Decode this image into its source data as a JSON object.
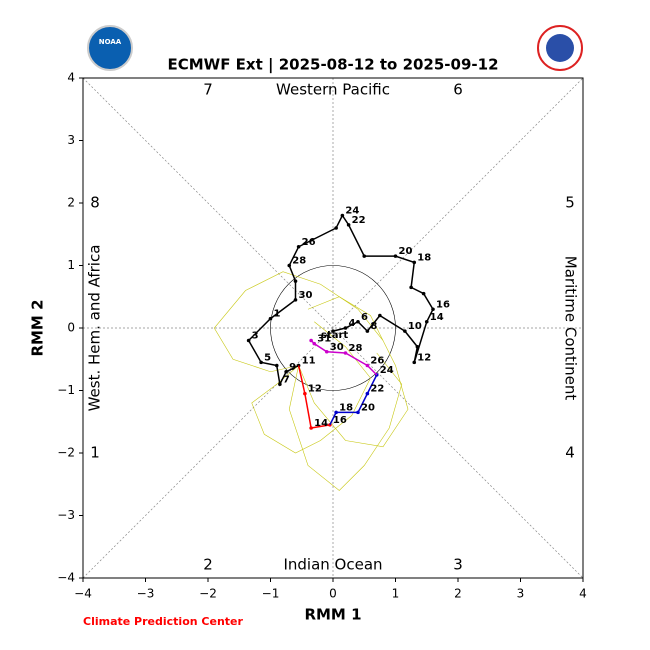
{
  "chart_data": {
    "type": "phase",
    "title": "ECMWF Ext | 2025-08-12 to 2025-09-12",
    "xlabel": "RMM 1",
    "ylabel": "RMM 2",
    "xlim": [
      -4,
      4
    ],
    "ylim": [
      -4,
      4
    ],
    "xticks": [
      {
        "value": -4,
        "label": "−4"
      },
      {
        "value": -3,
        "label": "−3"
      },
      {
        "value": -2,
        "label": "−2"
      },
      {
        "value": -1,
        "label": "−1"
      },
      0,
      1,
      2,
      3,
      4
    ],
    "yticks": [
      {
        "value": -4,
        "label": "−4"
      },
      {
        "value": -3,
        "label": "−3"
      },
      {
        "value": -2,
        "label": "−2"
      },
      {
        "value": -1,
        "label": "−1"
      },
      0,
      1,
      2,
      3,
      4
    ],
    "regions": {
      "top": "Western Pacific",
      "bottom": "Indian Ocean",
      "left": "West. Hem. and Africa",
      "right": "Maritime Continent"
    },
    "phases": [
      1,
      2,
      3,
      4,
      5,
      6,
      7,
      8
    ],
    "start_label": "start",
    "footer": "Climate Prediction Center",
    "logo_text": "NOAA",
    "ensemble_color": "#c8c814",
    "ensemble": [
      {
        "x": [
          -0.55,
          -0.9,
          -1.3,
          -1.1,
          -0.6,
          -0.2,
          0.3,
          0.6,
          0.2,
          -0.3
        ],
        "y": [
          -0.6,
          -0.9,
          -1.2,
          -1.7,
          -2.0,
          -1.8,
          -1.4,
          -0.8,
          -0.3,
          0.1
        ]
      },
      {
        "x": [
          -0.55,
          -0.3,
          0.2,
          0.8,
          1.2,
          1.0,
          0.6,
          0.1,
          -0.4
        ],
        "y": [
          -0.6,
          -1.2,
          -1.8,
          -1.9,
          -1.3,
          -0.6,
          0.2,
          0.5,
          0.3
        ]
      },
      {
        "x": [
          -0.55,
          -0.7,
          -0.4,
          0.1,
          0.5,
          0.9,
          1.1,
          0.7
        ],
        "y": [
          -0.6,
          -1.3,
          -2.2,
          -2.6,
          -2.2,
          -1.6,
          -0.9,
          -0.4
        ]
      },
      {
        "x": [
          -0.55,
          -1.0,
          -1.6,
          -1.9,
          -1.4,
          -0.8,
          -0.2,
          0.4,
          0.8
        ],
        "y": [
          -0.6,
          -0.7,
          -0.5,
          0.0,
          0.6,
          0.9,
          0.7,
          0.3,
          -0.2
        ]
      }
    ],
    "observed": {
      "color": "#000000",
      "x": [
        0.0,
        0.2,
        0.4,
        0.55,
        0.75,
        1.15,
        1.35,
        1.3,
        1.5,
        1.6,
        1.45,
        1.25,
        1.3,
        1.0,
        0.5,
        0.25,
        0.15,
        0.05,
        -0.55,
        -0.7,
        -0.6,
        -0.6,
        -1.0,
        -1.35,
        -1.15,
        -0.9,
        -0.85,
        -0.75,
        -0.55
      ],
      "y": [
        -0.05,
        0.0,
        0.1,
        -0.05,
        0.2,
        -0.05,
        -0.3,
        -0.55,
        0.1,
        0.3,
        0.55,
        0.65,
        1.05,
        1.15,
        1.15,
        1.65,
        1.8,
        1.6,
        1.3,
        1.0,
        0.75,
        0.45,
        0.15,
        -0.2,
        -0.55,
        -0.6,
        -0.9,
        -0.7,
        -0.6
      ],
      "labels": [
        null,
        4,
        6,
        8,
        null,
        10,
        null,
        12,
        14,
        16,
        null,
        null,
        18,
        20,
        null,
        22,
        24,
        null,
        26,
        28,
        null,
        30,
        1,
        3,
        5,
        null,
        7,
        9,
        11
      ]
    },
    "forecast": [
      {
        "color": "#ff0000",
        "x": [
          -0.45,
          -0.35,
          -0.05
        ],
        "y": [
          -1.05,
          -1.6,
          -1.55
        ],
        "labels": [
          12,
          14,
          16
        ]
      },
      {
        "color": "#0000cc",
        "x": [
          0.05,
          0.4,
          0.55,
          0.7
        ],
        "y": [
          -1.35,
          -1.35,
          -1.05,
          -0.75
        ],
        "labels": [
          18,
          20,
          22,
          24
        ]
      },
      {
        "color": "#cc00cc",
        "x": [
          0.55,
          0.2,
          -0.1,
          -0.3,
          -0.35
        ],
        "y": [
          -0.6,
          -0.4,
          -0.38,
          -0.25,
          -0.2
        ],
        "labels": [
          26,
          28,
          30,
          31,
          null
        ]
      }
    ]
  }
}
